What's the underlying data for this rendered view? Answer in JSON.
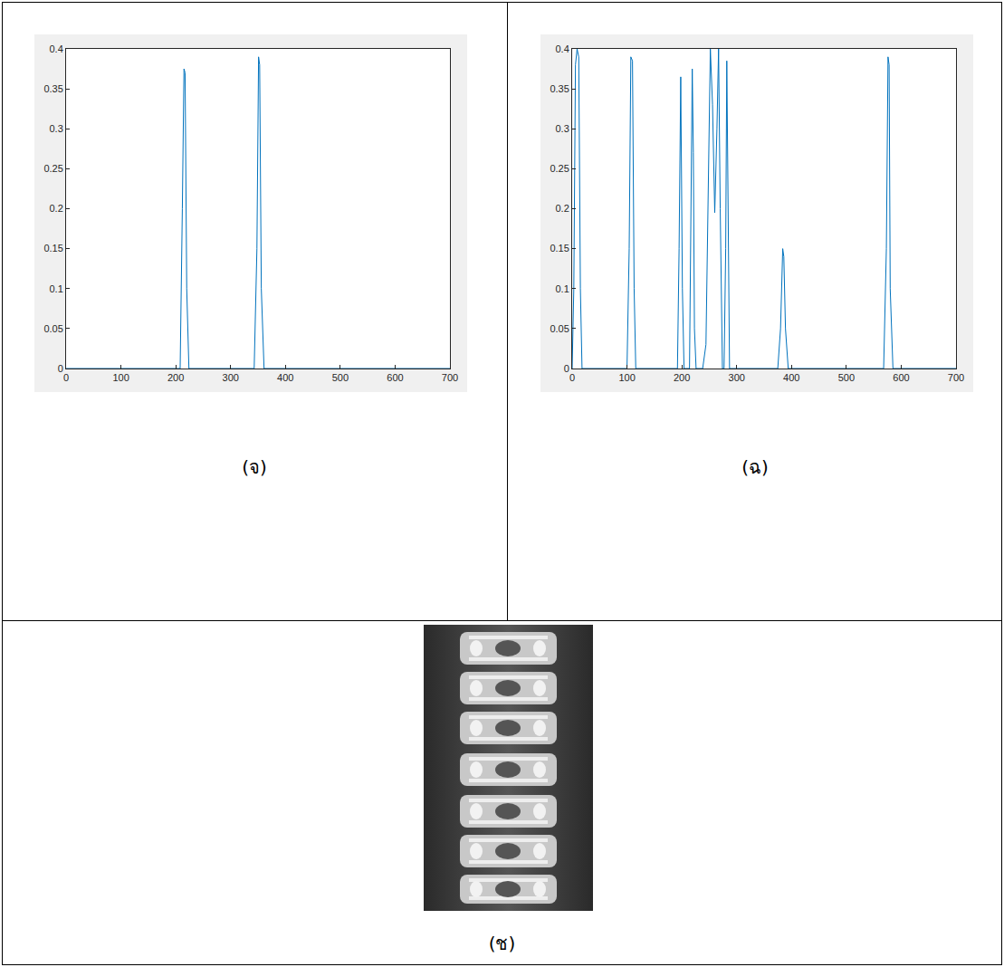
{
  "chart_data": [
    {
      "type": "line",
      "caption": "(จ)",
      "color": "#0072bd",
      "x": [
        0,
        208,
        212,
        215,
        217,
        220,
        224,
        343,
        348,
        351,
        353,
        356,
        361,
        700
      ],
      "values": [
        0,
        0,
        0.2,
        0.375,
        0.37,
        0.1,
        0,
        0,
        0.15,
        0.39,
        0.38,
        0.1,
        0,
        0
      ],
      "xlim": [
        0,
        700
      ],
      "xticks": [
        0,
        100,
        200,
        300,
        400,
        500,
        600,
        700
      ],
      "ylim": [
        0,
        0.4
      ],
      "yticks": [
        0,
        0.05,
        0.1,
        0.15,
        0.2,
        0.25,
        0.3,
        0.35,
        0.4
      ],
      "grid": false
    },
    {
      "type": "line",
      "caption": "(ฉ)",
      "color": "#0072bd",
      "x": [
        0,
        3,
        6,
        9,
        12,
        15,
        18,
        100,
        104,
        107,
        110,
        113,
        116,
        192,
        195,
        198,
        201,
        204,
        214,
        217,
        219,
        221,
        223,
        226,
        238,
        244,
        248,
        252,
        256,
        260,
        264,
        267,
        270,
        274,
        277,
        280,
        282,
        284,
        287,
        375,
        380,
        384,
        386,
        389,
        394,
        568,
        573,
        576,
        578,
        580,
        585,
        700
      ],
      "values": [
        0,
        0.1,
        0.38,
        0.4,
        0.39,
        0.1,
        0,
        0,
        0.15,
        0.39,
        0.385,
        0.1,
        0,
        0,
        0.15,
        0.365,
        0.1,
        0,
        0,
        0.2,
        0.375,
        0.27,
        0.05,
        0,
        0,
        0.03,
        0.2,
        0.4,
        0.33,
        0.195,
        0.3,
        0.4,
        0.2,
        0,
        0,
        0.15,
        0.385,
        0.2,
        0,
        0,
        0.05,
        0.15,
        0.14,
        0.05,
        0,
        0,
        0.15,
        0.39,
        0.38,
        0.1,
        0,
        0
      ],
      "xlim": [
        0,
        700
      ],
      "xticks": [
        0,
        100,
        200,
        300,
        400,
        500,
        600,
        700
      ],
      "ylim": [
        0,
        0.4
      ],
      "yticks": [
        0,
        0.05,
        0.1,
        0.15,
        0.2,
        0.25,
        0.3,
        0.35,
        0.4
      ],
      "grid": false
    }
  ],
  "image_panel": {
    "caption": "(ช)"
  }
}
